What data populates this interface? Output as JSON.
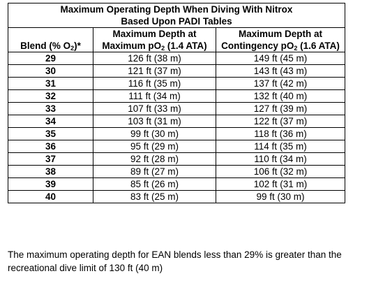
{
  "table": {
    "title_line1": "Maximum Operating Depth When Diving With Nitrox",
    "title_line2": "Based Upon PADI Tables",
    "col_blend": {
      "prefix": "Blend (% O",
      "sub": "2",
      "suffix": ")*"
    },
    "col_max": {
      "line1": "Maximum Depth at",
      "prefix": "Maximum pO",
      "sub": "2",
      "suffix": " (1.4 ATA)"
    },
    "col_cont": {
      "line1": "Maximum Depth at",
      "prefix": "Contingency pO",
      "sub": "2",
      "suffix": " (1.6 ATA)"
    },
    "rows": [
      {
        "blend": "29",
        "max": "126 ft (38 m)",
        "cont": "149 ft (45 m)"
      },
      {
        "blend": "30",
        "max": "121 ft (37 m)",
        "cont": "143 ft (43 m)"
      },
      {
        "blend": "31",
        "max": "116 ft (35 m)",
        "cont": "137 ft (42 m)"
      },
      {
        "blend": "32",
        "max": "111 ft (34 m)",
        "cont": "132 ft (40 m)"
      },
      {
        "blend": "33",
        "max": "107 ft (33 m)",
        "cont": "127 ft (39 m)"
      },
      {
        "blend": "34",
        "max": "103 ft (31 m)",
        "cont": "122 ft (37 m)"
      },
      {
        "blend": "35",
        "max": "99 ft (30 m)",
        "cont": "118 ft (36 m)"
      },
      {
        "blend": "36",
        "max": "95 ft (29 m)",
        "cont": "114 ft (35 m)"
      },
      {
        "blend": "37",
        "max": "92 ft (28 m)",
        "cont": "110 ft (34 m)"
      },
      {
        "blend": "38",
        "max": "89 ft (27 m)",
        "cont": "106 ft (32 m)"
      },
      {
        "blend": "39",
        "max": "85 ft (26 m)",
        "cont": "102 ft (31 m)"
      },
      {
        "blend": "40",
        "max": "83 ft (25 m)",
        "cont": "99 ft (30 m)"
      }
    ]
  },
  "note": {
    "line1": "The maximum operating depth for EAN blends less than 29% is greater than the",
    "line2": "recreational dive limit of 130 ft (40 m)"
  }
}
